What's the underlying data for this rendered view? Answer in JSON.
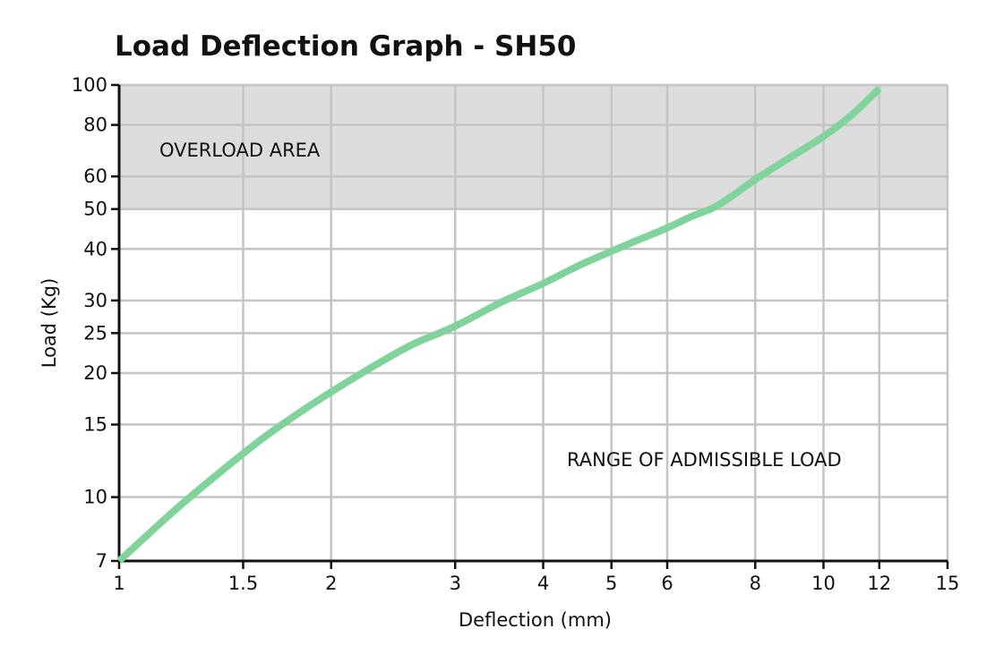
{
  "chart_data": {
    "type": "line",
    "title": "Load Deflection Graph - SH50",
    "xlabel": "Deflection (mm)",
    "ylabel": "Load (Kg)",
    "x_scale": "log",
    "y_scale": "log",
    "xlim": [
      1,
      15
    ],
    "ylim": [
      7,
      100
    ],
    "x_ticks": [
      1,
      1.5,
      2,
      3,
      4,
      5,
      6,
      8,
      10,
      12,
      15
    ],
    "y_ticks": [
      7,
      10,
      15,
      20,
      25,
      30,
      40,
      50,
      60,
      80,
      100
    ],
    "grid": true,
    "overload_threshold": 50,
    "overload_label": "OVERLOAD AREA",
    "admissible_label": "RANGE OF ADMISSIBLE LOAD",
    "colors": {
      "line": "#7fd39b",
      "overload_band": "#dcdcdc",
      "grid": "#c4c4c4",
      "axis": "#111111"
    },
    "series": [
      {
        "x": [
          1.0,
          1.2,
          1.4,
          1.6,
          1.8,
          2.0,
          2.3,
          2.6,
          3.0,
          3.5,
          4.0,
          4.5,
          5.0,
          5.5,
          6.0,
          6.5,
          7.0,
          7.5,
          8.0,
          9.0,
          10.0,
          11.0,
          12.0
        ],
        "y": [
          7.0,
          9.3,
          11.6,
          13.9,
          16.0,
          18.0,
          20.8,
          23.4,
          26.0,
          29.8,
          33.0,
          36.5,
          39.5,
          42.3,
          45.0,
          48.0,
          50.5,
          54.5,
          59.0,
          67.0,
          75.0,
          85.0,
          98.0
        ]
      }
    ]
  }
}
